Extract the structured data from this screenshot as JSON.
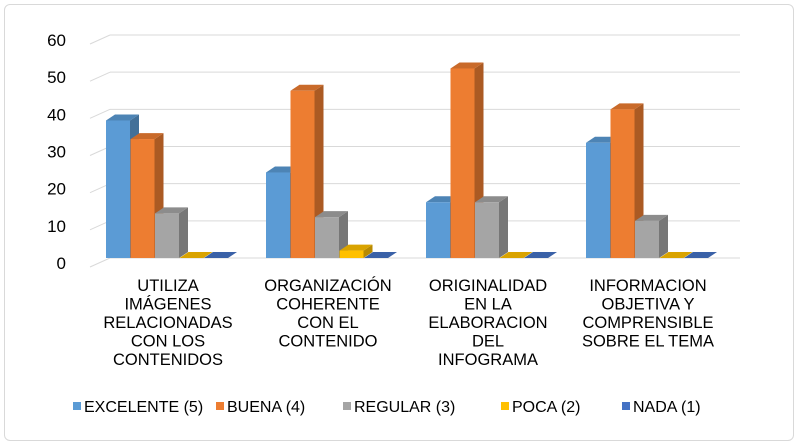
{
  "chart_data": {
    "type": "bar",
    "style": "3d-clustered-column",
    "categories": [
      [
        "UTILIZA",
        "IMÁGENES",
        "RELACIONADAS",
        "CON LOS",
        "CONTENIDOS"
      ],
      [
        "ORGANIZACIÓN",
        "COHERENTE",
        "CON EL",
        "CONTENIDO"
      ],
      [
        "ORIGINALIDAD",
        "EN LA",
        "ELABORACION",
        "DEL",
        "INFOGRAMA"
      ],
      [
        "INFORMACION",
        "OBJETIVA Y",
        "COMPRENSIBLE",
        "SOBRE EL TEMA"
      ]
    ],
    "series": [
      {
        "name": "EXCELENTE (5)",
        "color": "#5b9bd5",
        "values": [
          37,
          23,
          15,
          31
        ]
      },
      {
        "name": "BUENA (4)",
        "color": "#ed7d31",
        "values": [
          32,
          45,
          51,
          40
        ]
      },
      {
        "name": "REGULAR (3)",
        "color": "#a5a5a5",
        "values": [
          12,
          11,
          15,
          10
        ]
      },
      {
        "name": "POCA (2)",
        "color": "#ffc000",
        "values": [
          0,
          2,
          0,
          0
        ]
      },
      {
        "name": "NADA (1)",
        "color": "#4472c4",
        "values": [
          0,
          0,
          0,
          0
        ]
      }
    ],
    "yticks": [
      0,
      10,
      20,
      30,
      40,
      50,
      60
    ],
    "ylim": [
      0,
      60
    ],
    "grid": true,
    "legend_position": "bottom"
  }
}
